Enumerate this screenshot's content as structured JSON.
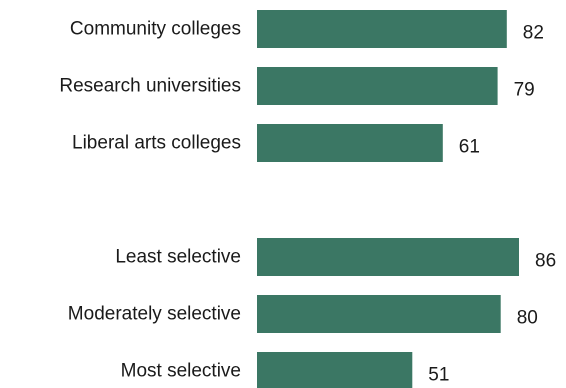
{
  "chart_data": {
    "type": "bar",
    "orientation": "horizontal",
    "bar_color": "#3b7764",
    "title": "",
    "xlabel": "",
    "ylabel": "",
    "xlim": [
      0,
      100
    ],
    "grid": false,
    "legend": "none",
    "groups": [
      {
        "categories": [
          "Community colleges",
          "Research universities",
          "Liberal arts colleges"
        ],
        "values": [
          82,
          79,
          61
        ]
      },
      {
        "categories": [
          "Least selective",
          "Moderately selective",
          "Most selective"
        ],
        "values": [
          86,
          80,
          51
        ]
      }
    ]
  }
}
